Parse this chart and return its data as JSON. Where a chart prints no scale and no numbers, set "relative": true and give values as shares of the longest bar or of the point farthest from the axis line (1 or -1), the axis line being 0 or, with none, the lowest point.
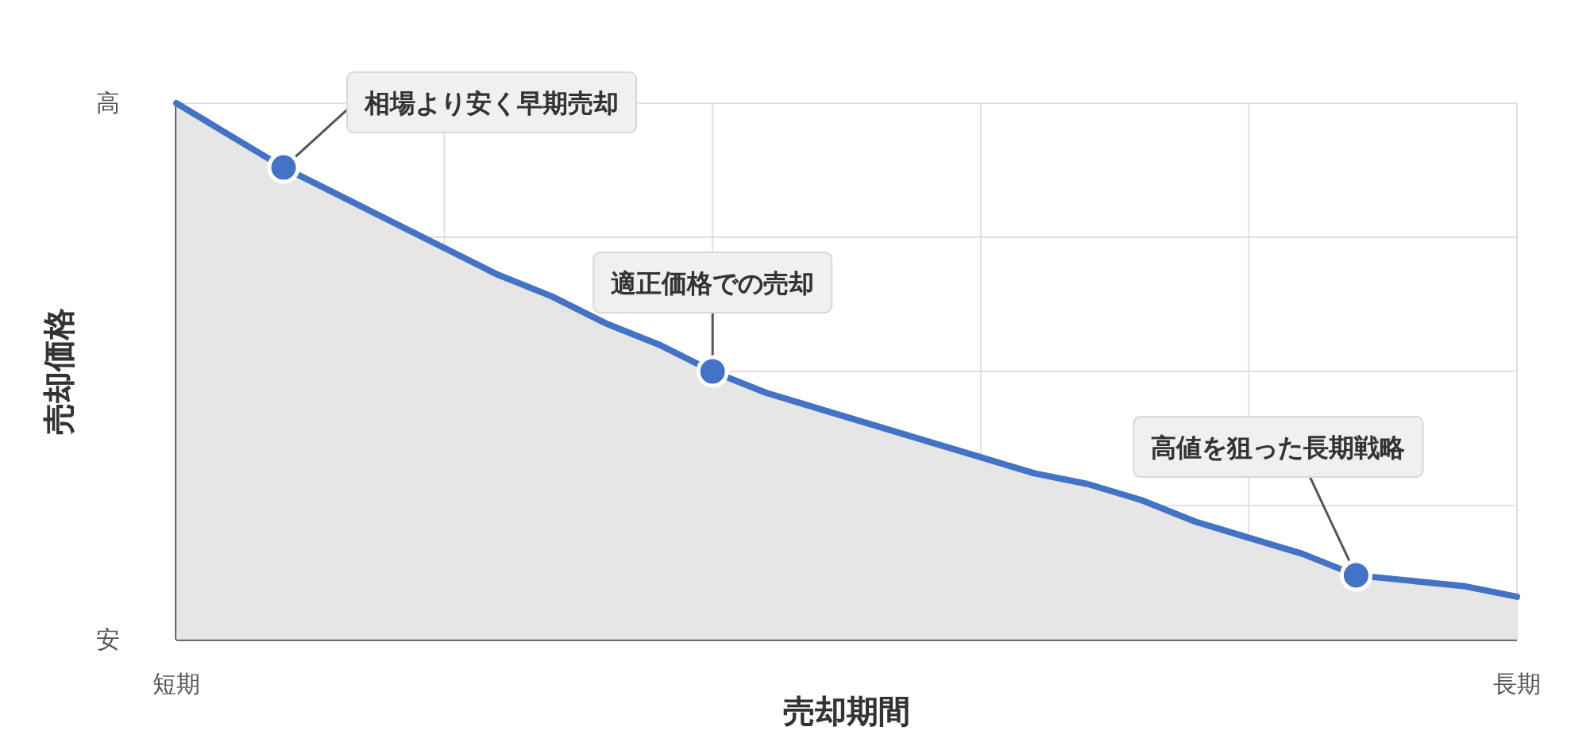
{
  "chart_data": {
    "type": "area",
    "relative": true,
    "xlabel": "売却期間",
    "ylabel": "売却価格",
    "grid": true,
    "categories": [
      "短期",
      null,
      null,
      null,
      null,
      null,
      null,
      null,
      null,
      null,
      null,
      null,
      null,
      null,
      null,
      null,
      null,
      null,
      null,
      null,
      null,
      null,
      null,
      null,
      null,
      "長期"
    ],
    "series": [
      {
        "color": "#4472c4",
        "values": [
          1.0,
          0.94,
          0.88,
          0.83,
          0.78,
          0.73,
          0.68,
          0.64,
          0.59,
          0.55,
          0.5,
          0.46,
          0.43,
          0.4,
          0.37,
          0.34,
          0.31,
          0.29,
          0.26,
          0.22,
          0.19,
          0.16,
          0.12,
          0.11,
          0.1,
          0.08
        ]
      },
      {
        "type": "scatter",
        "marker": "circle",
        "color": "#4472c4",
        "values": [
          null,
          null,
          0.88,
          null,
          null,
          null,
          null,
          null,
          null,
          null,
          0.5,
          null,
          null,
          null,
          null,
          null,
          null,
          null,
          null,
          null,
          null,
          null,
          0.12,
          null,
          null,
          null
        ]
      }
    ],
    "annotations": [
      "相場より安く早期売却",
      "適正価格での売却",
      "高値を狙った長期戦略",
      "高",
      "安"
    ]
  }
}
